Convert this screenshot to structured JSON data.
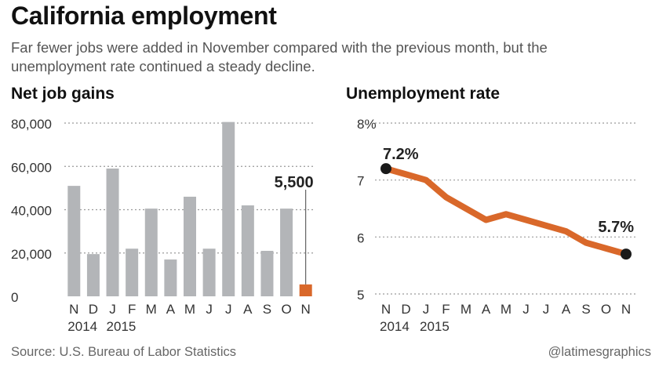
{
  "header": {
    "title": "California employment",
    "subtitle": "Far fewer jobs were added in November compared with the previous month, but the unemployment rate continued a steady decline."
  },
  "footer": {
    "source": "Source: U.S. Bureau of Labor Statistics",
    "credit": "@latimesgraphics"
  },
  "colors": {
    "bar": "#b3b5b8",
    "highlight": "#d9682a",
    "dot": "#1a1a1a",
    "grid": "#9a9a9a"
  },
  "chart_data": [
    {
      "type": "bar",
      "title": "Net job gains",
      "categories": [
        "N",
        "D",
        "J",
        "F",
        "M",
        "A",
        "M",
        "J",
        "J",
        "A",
        "S",
        "O",
        "N"
      ],
      "year_labels": [
        "2014",
        "2015"
      ],
      "values": [
        51000,
        19500,
        59000,
        22000,
        40500,
        17000,
        46000,
        22000,
        80500,
        42000,
        21000,
        40500,
        5500
      ],
      "highlight_index": 12,
      "highlight_label": "5,500",
      "ylim": [
        0,
        80000
      ],
      "yticks": [
        0,
        20000,
        40000,
        60000,
        80000
      ],
      "ytick_labels": [
        "0",
        "20,000",
        "40,000",
        "60,000",
        "80,000"
      ],
      "grid": true
    },
    {
      "type": "line",
      "title": "Unemployment rate",
      "categories": [
        "N",
        "D",
        "J",
        "F",
        "M",
        "A",
        "M",
        "J",
        "J",
        "A",
        "S",
        "O",
        "N"
      ],
      "year_labels": [
        "2014",
        "2015"
      ],
      "values": [
        7.2,
        7.1,
        7.0,
        6.7,
        6.5,
        6.3,
        6.4,
        6.3,
        6.2,
        6.1,
        5.9,
        5.8,
        5.7
      ],
      "ylim": [
        5,
        8
      ],
      "yticks": [
        5,
        6,
        7,
        8
      ],
      "ytick_labels": [
        "5",
        "6",
        "7",
        "8%"
      ],
      "start_label": "7.2%",
      "end_label": "5.7%",
      "grid": true
    }
  ]
}
